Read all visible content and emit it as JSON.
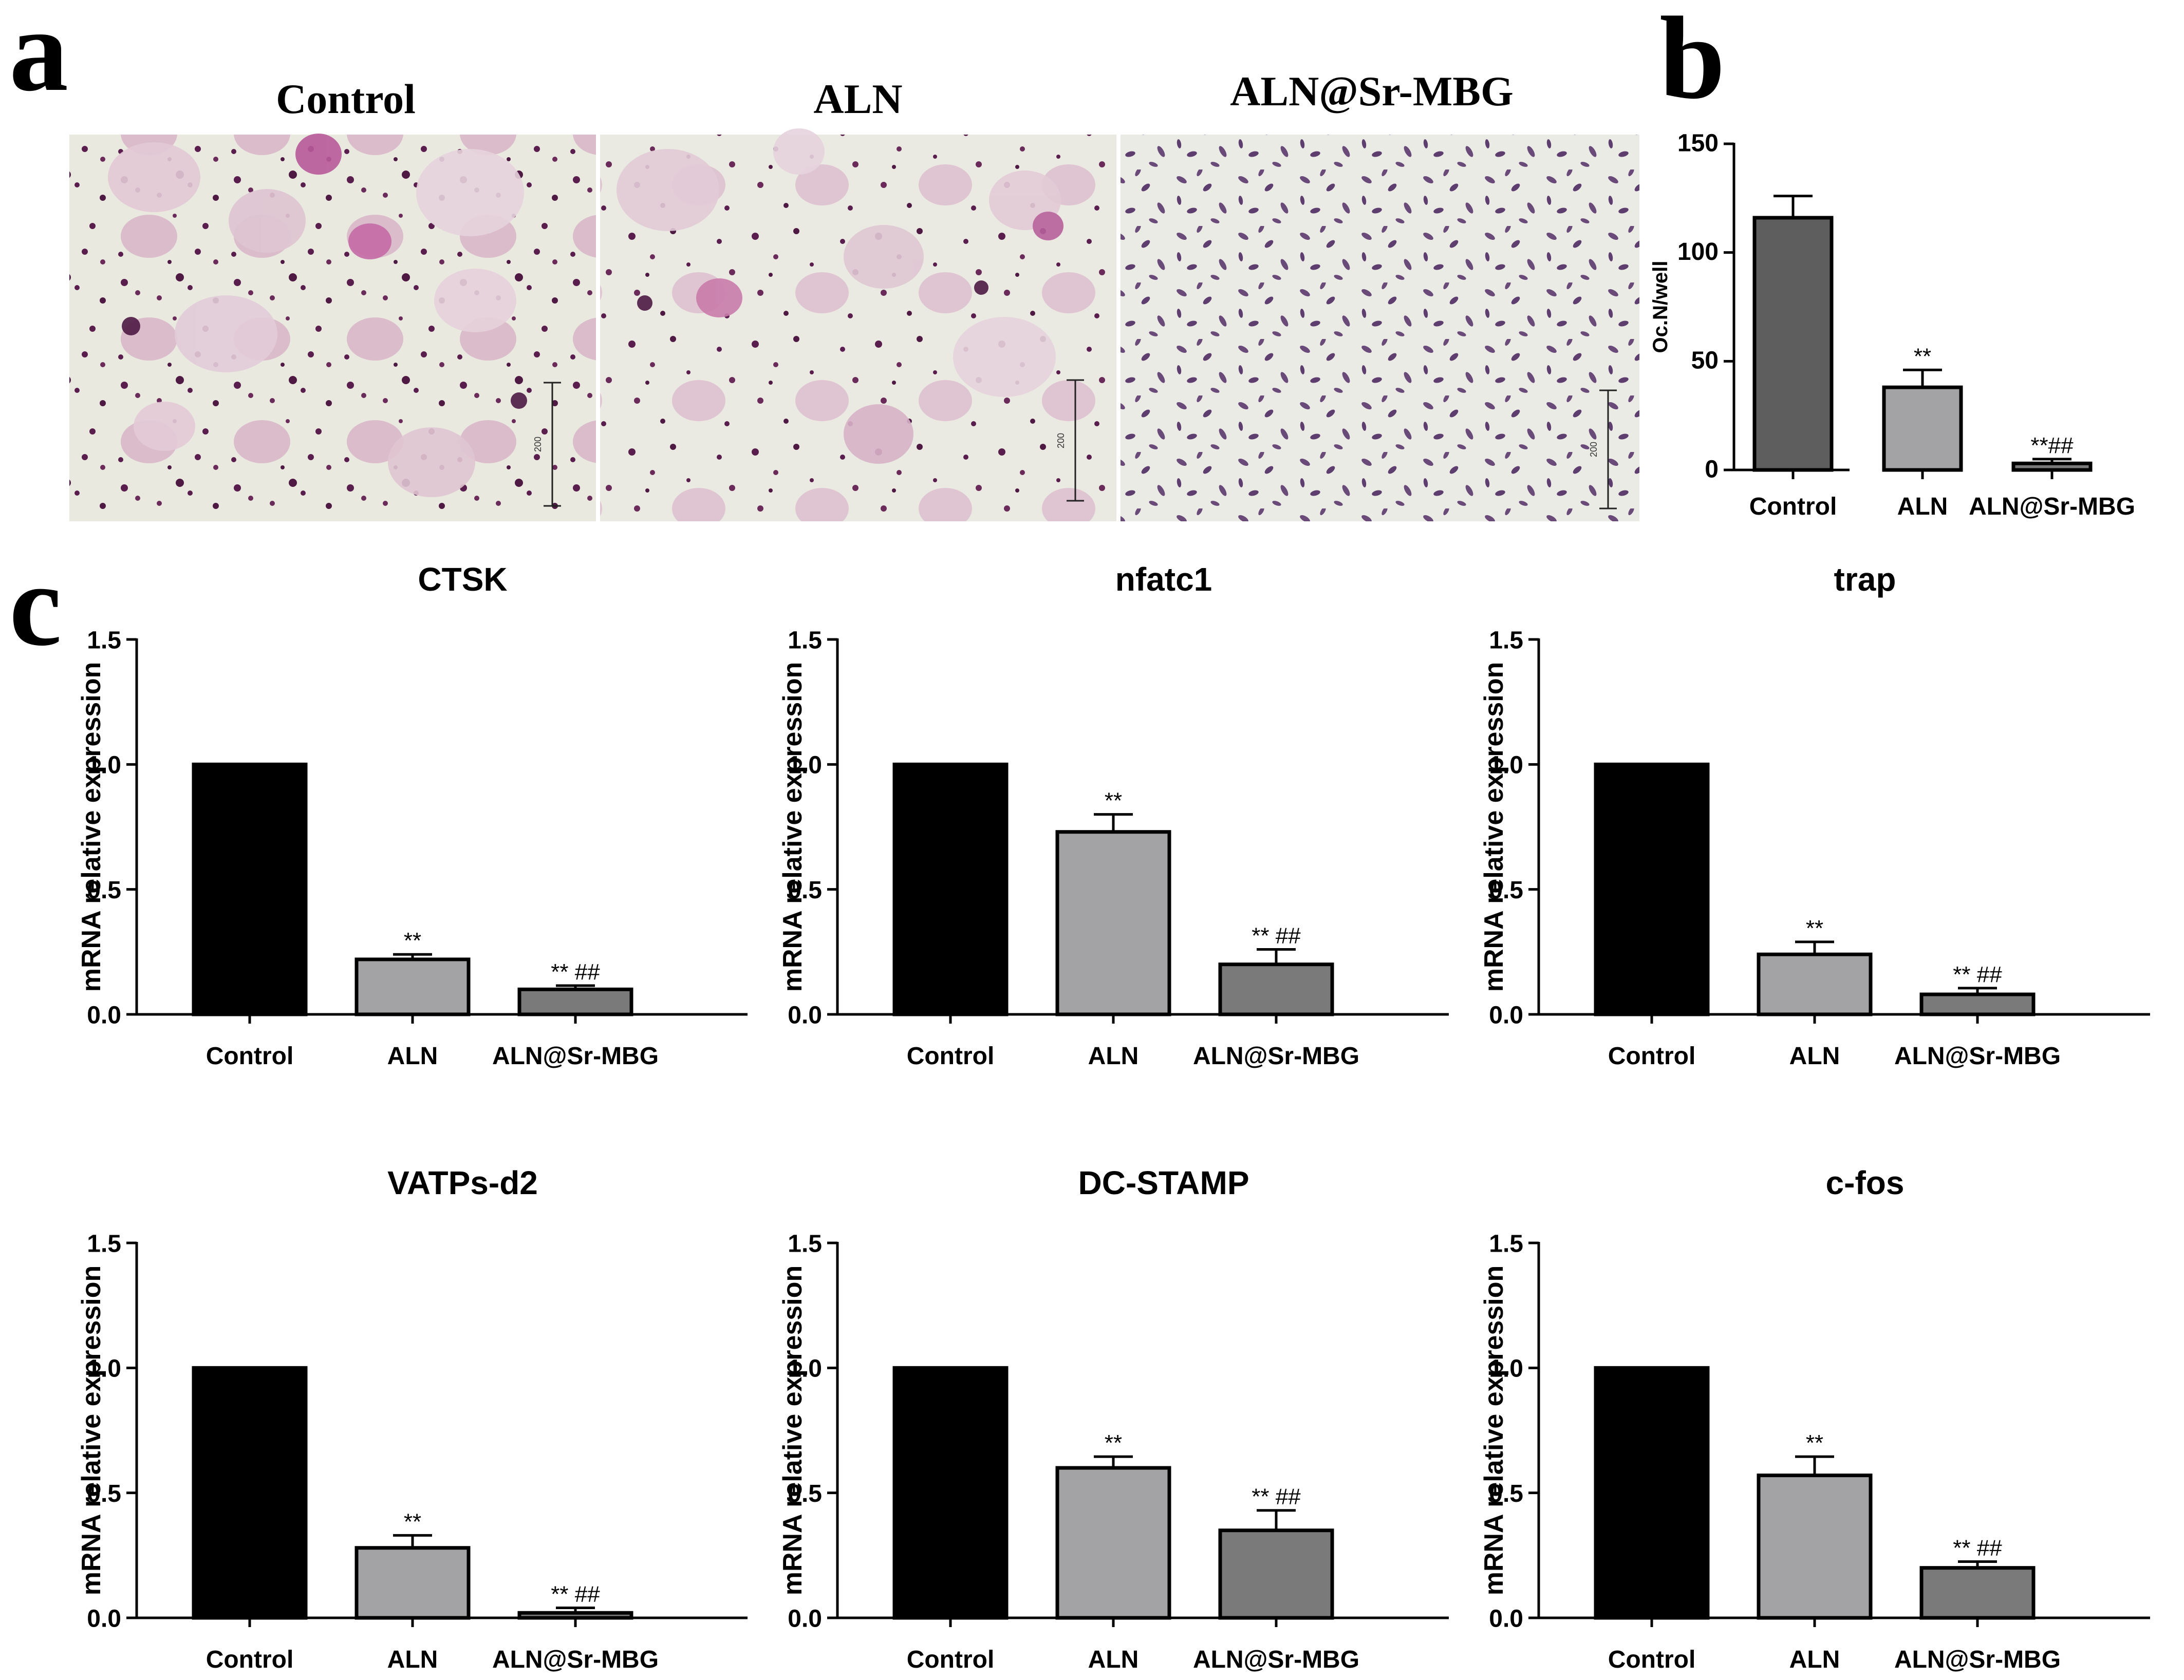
{
  "panel_letters": [
    "a",
    "b",
    "c"
  ],
  "micrographs": [
    {
      "title": "Control",
      "scale_label": "200"
    },
    {
      "title": "ALN",
      "scale_label": "200"
    },
    {
      "title": "ALN@Sr-MBG",
      "scale_label": "200"
    }
  ],
  "colors": {
    "Control": "#000000",
    "ALN": "#a3a3a6",
    "ALN@Sr-MBG": "#7a7a7a",
    "b_Control": "#5e5e5e",
    "micrograph_bg": "#e9e9e0",
    "stain_purple": "#5a1e4e",
    "stain_pink": "#c98ab0"
  },
  "chart_data": [
    {
      "panel": "b",
      "type": "bar",
      "title": "",
      "ylabel": "Oc.N/well",
      "xlabel": "",
      "categories": [
        "Control",
        "ALN",
        "ALN@Sr-MBG"
      ],
      "values": [
        116,
        38,
        3
      ],
      "errors": [
        10,
        8,
        2
      ],
      "annotations": [
        "",
        "**",
        "**##"
      ],
      "ylim": [
        0,
        150
      ],
      "yticks": [
        "0",
        "50",
        "100",
        "150"
      ]
    },
    {
      "panel": "c",
      "type": "bar",
      "title": "CTSK",
      "ylabel": "mRNA relative expression",
      "xlabel": "",
      "categories": [
        "Control",
        "ALN",
        "ALN@Sr-MBG"
      ],
      "values": [
        1.0,
        0.22,
        0.1
      ],
      "errors": [
        0,
        0.02,
        0.015
      ],
      "annotations": [
        "",
        "**",
        "** ##"
      ],
      "ylim": [
        0,
        1.5
      ],
      "yticks": [
        "0.0",
        "0.5",
        "1.0",
        "1.5"
      ]
    },
    {
      "panel": "c",
      "type": "bar",
      "title": "nfatc1",
      "ylabel": "mRNA relative expression",
      "xlabel": "",
      "categories": [
        "Control",
        "ALN",
        "ALN@Sr-MBG"
      ],
      "values": [
        1.0,
        0.73,
        0.2
      ],
      "errors": [
        0,
        0.07,
        0.06
      ],
      "annotations": [
        "",
        "**",
        "** ##"
      ],
      "ylim": [
        0,
        1.5
      ],
      "yticks": [
        "0.0",
        "0.5",
        "1.0",
        "1.5"
      ]
    },
    {
      "panel": "c",
      "type": "bar",
      "title": "trap",
      "ylabel": "mRNA relative expression",
      "xlabel": "",
      "categories": [
        "Control",
        "ALN",
        "ALN@Sr-MBG"
      ],
      "values": [
        1.0,
        0.24,
        0.08
      ],
      "errors": [
        0,
        0.05,
        0.025
      ],
      "annotations": [
        "",
        "**",
        "** ##"
      ],
      "ylim": [
        0,
        1.5
      ],
      "yticks": [
        "0.0",
        "0.5",
        "1.0",
        "1.5"
      ]
    },
    {
      "panel": "c",
      "type": "bar",
      "title": "VATPs-d2",
      "ylabel": "mRNA relative expression",
      "xlabel": "",
      "categories": [
        "Control",
        "ALN",
        "ALN@Sr-MBG"
      ],
      "values": [
        1.0,
        0.28,
        0.02
      ],
      "errors": [
        0,
        0.05,
        0.02
      ],
      "annotations": [
        "",
        "**",
        "** ##"
      ],
      "ylim": [
        0,
        1.5
      ],
      "yticks": [
        "0.0",
        "0.5",
        "1.0",
        "1.5"
      ]
    },
    {
      "panel": "c",
      "type": "bar",
      "title": "DC-STAMP",
      "ylabel": "mRNA relative expression",
      "xlabel": "",
      "categories": [
        "Control",
        "ALN",
        "ALN@Sr-MBG"
      ],
      "values": [
        1.0,
        0.6,
        0.35
      ],
      "errors": [
        0,
        0.045,
        0.08
      ],
      "annotations": [
        "",
        "**",
        "** ##"
      ],
      "ylim": [
        0,
        1.5
      ],
      "yticks": [
        "0.0",
        "0.5",
        "1.0",
        "1.5"
      ]
    },
    {
      "panel": "c",
      "type": "bar",
      "title": "c-fos",
      "ylabel": "mRNA relative expression",
      "xlabel": "",
      "categories": [
        "Control",
        "ALN",
        "ALN@Sr-MBG"
      ],
      "values": [
        1.0,
        0.57,
        0.2
      ],
      "errors": [
        0,
        0.075,
        0.025
      ],
      "annotations": [
        "",
        "**",
        "** ##"
      ],
      "ylim": [
        0,
        1.5
      ],
      "yticks": [
        "0.0",
        "0.5",
        "1.0",
        "1.5"
      ]
    }
  ]
}
